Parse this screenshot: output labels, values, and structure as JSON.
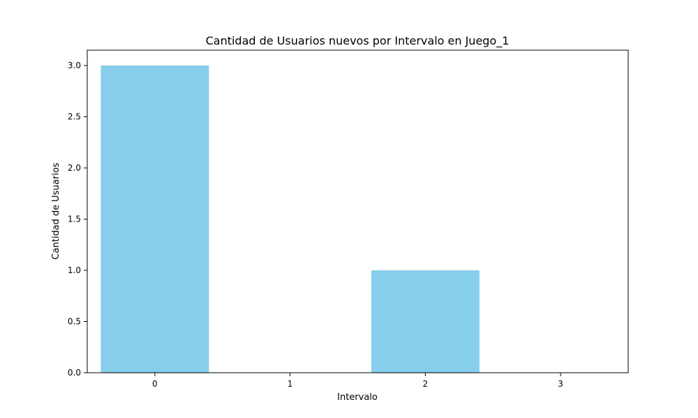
{
  "chart_data": {
    "type": "bar",
    "title": "Cantidad de Usuarios nuevos por Intervalo en Juego_1",
    "xlabel": "Intervalo",
    "ylabel": "Cantidad de Usuarios",
    "categories": [
      "0",
      "1",
      "2",
      "3"
    ],
    "values": [
      3,
      0,
      1,
      0
    ],
    "ylim": [
      0,
      3.15
    ],
    "yticks": [
      0.0,
      0.5,
      1.0,
      1.5,
      2.0,
      2.5,
      3.0
    ],
    "ytick_labels": [
      "0.0",
      "0.5",
      "1.0",
      "1.5",
      "2.0",
      "2.5",
      "3.0"
    ],
    "bar_color": "#87CEEB",
    "grid": false,
    "legend": "none"
  }
}
